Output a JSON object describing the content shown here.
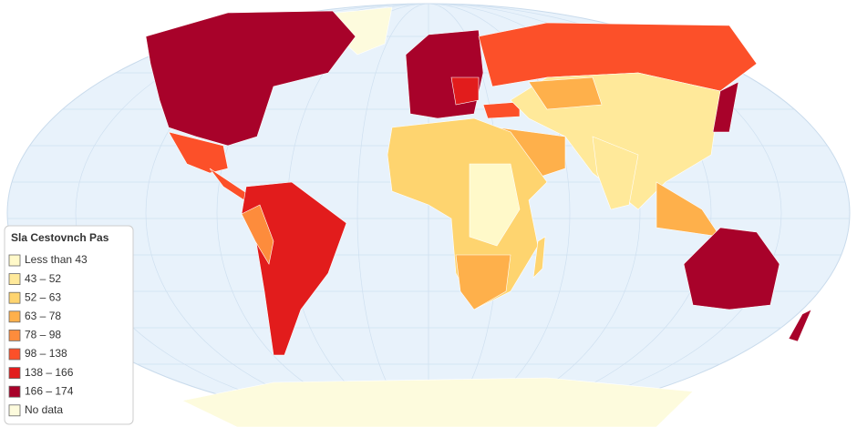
{
  "legend": {
    "title": "Sla Cestovnch Pas",
    "items": [
      {
        "label": "Less than 43",
        "color": "#fff9c9"
      },
      {
        "label": "43 – 52",
        "color": "#ffe99a"
      },
      {
        "label": "52 – 63",
        "color": "#fed46f"
      },
      {
        "label": "63 – 78",
        "color": "#feb04b"
      },
      {
        "label": "78 – 98",
        "color": "#fd8c3c"
      },
      {
        "label": "98 – 138",
        "color": "#fc5029"
      },
      {
        "label": "138 – 166",
        "color": "#e21c1c"
      },
      {
        "label": "166 – 174",
        "color": "#a8022a"
      },
      {
        "label": "No data",
        "color": "#fdfbdd"
      }
    ]
  }
}
